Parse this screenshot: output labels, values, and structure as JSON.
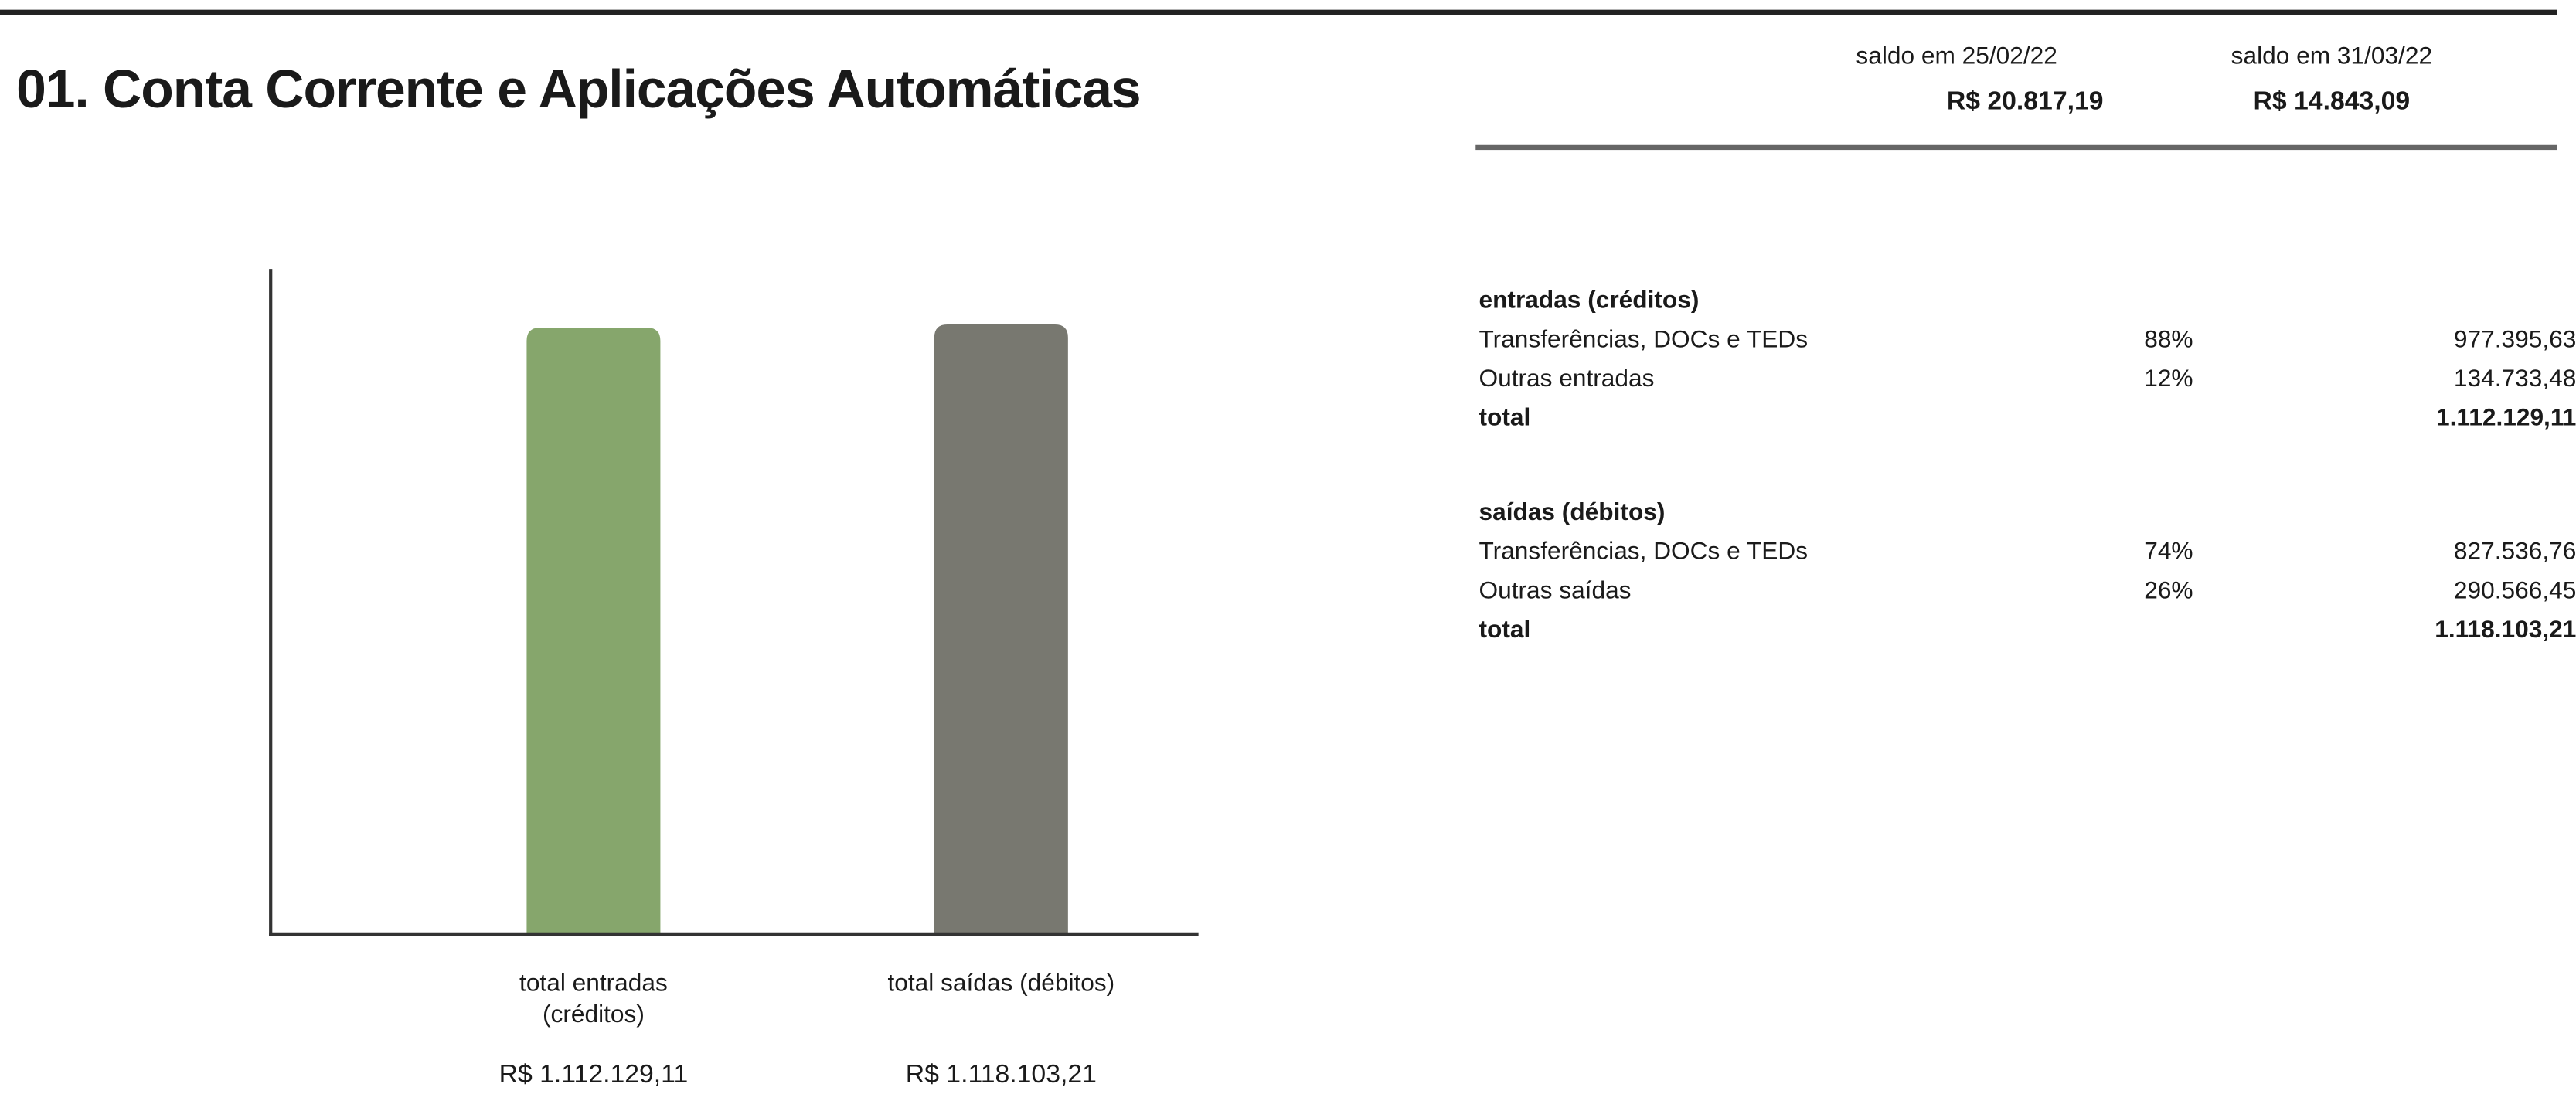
{
  "header": {
    "title": "01. Conta Corrente e Aplicações Automáticas",
    "balances": [
      {
        "label": "saldo em 25/02/22",
        "value": "R$ 20.817,19"
      },
      {
        "label": "saldo em 31/03/22",
        "value": "R$ 14.843,09"
      }
    ]
  },
  "table": {
    "sections": [
      {
        "heading": "entradas (créditos)",
        "rows": [
          [
            "Transferências, DOCs e TEDs",
            "88%",
            "977.395,63"
          ],
          [
            "Outras entradas",
            "12%",
            "134.733,48"
          ]
        ],
        "total": [
          "total",
          "1.112.129,11"
        ]
      },
      {
        "heading": "saídas (débitos)",
        "rows": [
          [
            "Transferências, DOCs e TEDs",
            "74%",
            "827.536,76"
          ],
          [
            "Outras saídas",
            "26%",
            "290.566,45"
          ]
        ],
        "total": [
          "total",
          "1.118.103,21"
        ]
      }
    ]
  },
  "chart_data": {
    "type": "bar",
    "categories": [
      "total entradas (créditos)",
      "total saídas (débitos)"
    ],
    "values": [
      1112129.11,
      1118103.21
    ],
    "value_labels": [
      "R$ 1.112.129,11",
      "R$ 1.118.103,21"
    ],
    "colors": [
      "#86a66c",
      "#787870"
    ],
    "ylim": [
      0,
      1220000
    ]
  }
}
